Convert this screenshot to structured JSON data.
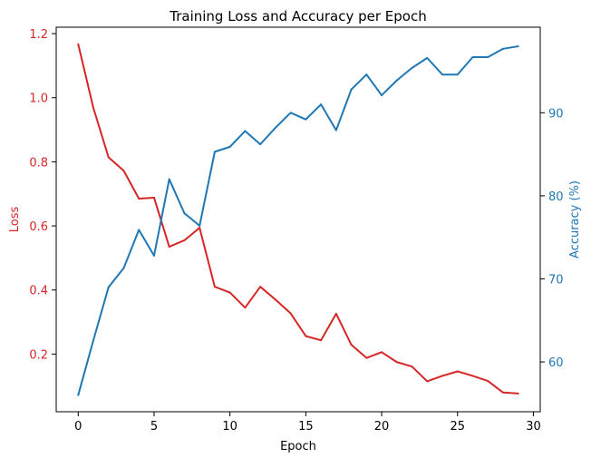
{
  "chart_data": {
    "type": "line",
    "title": "Training Loss and Accuracy per Epoch",
    "xlabel": "Epoch",
    "ylabel_left": "Loss",
    "ylabel_right": "Accuracy (%)",
    "xlim": [
      -1.45,
      30.45
    ],
    "ylim_left": [
      0.02,
      1.22
    ],
    "ylim_right": [
      54,
      100.3
    ],
    "x_ticks": [
      0,
      5,
      10,
      15,
      20,
      25,
      30
    ],
    "y_ticks_left": [
      0.2,
      0.4,
      0.6,
      0.8,
      1.0,
      1.2
    ],
    "y_ticks_right": [
      60,
      70,
      80,
      90
    ],
    "grid": false,
    "colors": {
      "loss": "#d62728",
      "accuracy": "#1f77b4"
    },
    "x": [
      0,
      1,
      2,
      3,
      4,
      5,
      6,
      7,
      8,
      9,
      10,
      11,
      12,
      13,
      14,
      15,
      16,
      17,
      18,
      19,
      20,
      21,
      22,
      23,
      24,
      25,
      26,
      27,
      28,
      29
    ],
    "series": [
      {
        "axis": "left",
        "color": "#d62728",
        "values": [
          1.167,
          0.968,
          0.814,
          0.772,
          0.685,
          0.688,
          0.535,
          0.555,
          0.594,
          0.41,
          0.392,
          0.345,
          0.41,
          0.37,
          0.327,
          0.256,
          0.243,
          0.326,
          0.229,
          0.188,
          0.206,
          0.175,
          0.161,
          0.115,
          0.132,
          0.146,
          0.132,
          0.116,
          0.08,
          0.077
        ]
      },
      {
        "axis": "right",
        "color": "#1f77b4",
        "values": [
          56.0,
          62.6,
          69.0,
          71.3,
          75.9,
          72.8,
          82.0,
          77.9,
          76.4,
          85.3,
          85.9,
          87.8,
          86.2,
          88.2,
          90.0,
          89.2,
          91.0,
          87.9,
          92.8,
          94.6,
          92.1,
          93.9,
          95.4,
          96.6,
          94.6,
          94.6,
          96.7,
          96.7,
          97.7,
          98.0
        ]
      }
    ]
  }
}
